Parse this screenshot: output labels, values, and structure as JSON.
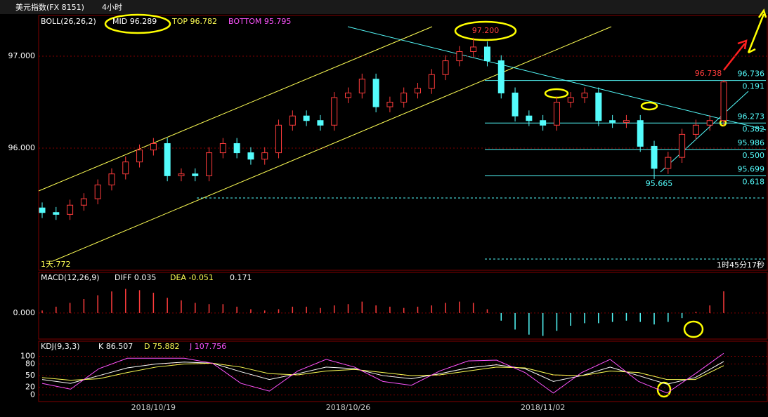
{
  "header": {
    "title": "美元指数(FX 8151)",
    "period": "4小时"
  },
  "chart_data": [
    {
      "type": "candlestick",
      "indicator": "BOLL(26,26,2)",
      "mid": "MID 96.289",
      "top": "TOP 96.782",
      "bottom": "BOTTOM 95.795",
      "categories": [
        null,
        null,
        null,
        null,
        null,
        null,
        null,
        null,
        "2018/10/19",
        null,
        null,
        null,
        null,
        null,
        null,
        null,
        null,
        null,
        null,
        null,
        null,
        null,
        "2018/10/26",
        null,
        null,
        null,
        null,
        null,
        null,
        null,
        null,
        null,
        null,
        null,
        null,
        null,
        "2018/11/02",
        null,
        null,
        null,
        null,
        null,
        null,
        null,
        null,
        null,
        null,
        null,
        null,
        null
      ],
      "open": [
        95.35,
        95.3,
        95.28,
        95.38,
        95.45,
        95.6,
        95.72,
        95.85,
        95.98,
        96.05,
        95.7,
        95.72,
        95.7,
        95.95,
        96.05,
        95.95,
        95.88,
        95.95,
        96.25,
        96.35,
        96.3,
        96.25,
        96.55,
        96.6,
        96.75,
        96.45,
        96.5,
        96.6,
        96.65,
        96.8,
        96.95,
        97.05,
        97.1,
        96.95,
        96.6,
        96.35,
        96.3,
        96.25,
        96.5,
        96.55,
        96.6,
        96.3,
        96.28,
        96.3,
        96.02,
        95.78,
        95.9,
        96.15,
        96.25,
        96.3
      ],
      "high": [
        95.41,
        95.36,
        95.44,
        95.51,
        95.66,
        95.78,
        95.91,
        96.04,
        96.11,
        96.11,
        95.78,
        95.78,
        96.01,
        96.11,
        96.11,
        96.01,
        96.01,
        96.31,
        96.41,
        96.41,
        96.36,
        96.61,
        96.66,
        96.81,
        96.81,
        96.56,
        96.66,
        96.71,
        96.86,
        97.01,
        97.11,
        97.2,
        97.16,
        97.01,
        96.66,
        96.41,
        96.36,
        96.56,
        96.61,
        96.66,
        96.66,
        96.36,
        96.36,
        96.36,
        96.08,
        95.96,
        96.21,
        96.31,
        96.36,
        96.738
      ],
      "low": [
        95.24,
        95.22,
        95.22,
        95.32,
        95.39,
        95.54,
        95.66,
        95.79,
        95.92,
        95.64,
        95.64,
        95.64,
        95.64,
        95.89,
        95.89,
        95.82,
        95.82,
        95.89,
        96.19,
        96.24,
        96.19,
        96.19,
        96.49,
        96.54,
        96.39,
        96.39,
        96.44,
        96.54,
        96.59,
        96.74,
        96.89,
        96.99,
        96.89,
        96.54,
        96.29,
        96.24,
        96.19,
        96.19,
        96.44,
        96.49,
        96.24,
        96.22,
        96.22,
        95.96,
        95.665,
        95.72,
        95.84,
        96.09,
        96.19,
        96.24
      ],
      "close": [
        95.3,
        95.28,
        95.38,
        95.45,
        95.6,
        95.72,
        95.85,
        95.98,
        96.05,
        95.7,
        95.72,
        95.7,
        95.95,
        96.05,
        95.95,
        95.88,
        95.95,
        96.25,
        96.35,
        96.3,
        96.25,
        96.55,
        96.6,
        96.75,
        96.45,
        96.5,
        96.6,
        96.65,
        96.8,
        96.95,
        97.05,
        97.1,
        96.95,
        96.6,
        96.35,
        96.3,
        96.25,
        96.5,
        96.55,
        96.6,
        96.3,
        96.28,
        96.3,
        96.02,
        95.78,
        95.9,
        96.15,
        96.25,
        96.3,
        96.72
      ],
      "up_color": "#ff3c3c",
      "down_color": "#54fcfc",
      "ylim": [
        94.672,
        97.443
      ],
      "yticks": [
        {
          "value": 97,
          "label": "97.000"
        },
        {
          "value": 96,
          "label": "96.000"
        }
      ],
      "fib": [
        {
          "price": 96.736,
          "ratio": "0.191"
        },
        {
          "price": 96.273,
          "ratio": "0.382"
        },
        {
          "price": 95.986,
          "ratio": "0.500"
        },
        {
          "price": 95.699,
          "ratio": "0.618"
        }
      ],
      "annotations": [
        "97.200",
        "96.738",
        "95.665",
        "1天.772",
        "1时45分17秒"
      ]
    },
    {
      "type": "bar",
      "indicator": "MACD(12,26,9)",
      "diff": "DIFF 0.035",
      "dea": "DEA -0.051",
      "macd": "0.171",
      "values": [
        0.02,
        0.05,
        0.08,
        0.11,
        0.14,
        0.17,
        0.19,
        0.18,
        0.16,
        0.12,
        0.1,
        0.08,
        0.07,
        0.07,
        0.05,
        0.03,
        0.02,
        0.03,
        0.05,
        0.05,
        0.04,
        0.06,
        0.07,
        0.09,
        0.06,
        0.05,
        0.04,
        0.05,
        0.06,
        0.08,
        0.09,
        0.08,
        0.03,
        -0.06,
        -0.13,
        -0.17,
        -0.18,
        -0.14,
        -0.1,
        -0.08,
        -0.08,
        -0.07,
        -0.06,
        -0.07,
        -0.09,
        -0.07,
        -0.04,
        0.01,
        0.06,
        0.171
      ],
      "up_color": "#ff3c3c",
      "down_color": "#54fcfc",
      "ylim": [
        -0.205,
        0.32
      ],
      "yticks": [
        {
          "value": 0,
          "label": "0.000"
        }
      ]
    },
    {
      "type": "line",
      "indicator": "KDJ(9,3,3)",
      "series": [
        {
          "name": "K 86.507",
          "color": "#ffffff",
          "values": [
            40,
            30,
            50,
            70,
            80,
            85,
            82,
            60,
            40,
            55,
            72,
            68,
            50,
            42,
            55,
            70,
            78,
            68,
            35,
            50,
            72,
            50,
            28,
            45,
            86.507
          ]
        },
        {
          "name": "D 75.882",
          "color": "#ffff54",
          "values": [
            45,
            38,
            42,
            58,
            72,
            80,
            82,
            72,
            55,
            52,
            62,
            66,
            58,
            50,
            52,
            62,
            72,
            70,
            52,
            50,
            62,
            58,
            40,
            40,
            75.882
          ]
        },
        {
          "name": "J 107.756",
          "color": "#ff54ff",
          "values": [
            30,
            15,
            68,
            95,
            95,
            95,
            82,
            30,
            10,
            62,
            92,
            72,
            35,
            25,
            62,
            88,
            90,
            58,
            5,
            58,
            92,
            35,
            5,
            55,
            107.756
          ]
        }
      ],
      "ylim": [
        -17,
        139
      ],
      "yticks": [
        100,
        80,
        50,
        20,
        0
      ]
    }
  ]
}
